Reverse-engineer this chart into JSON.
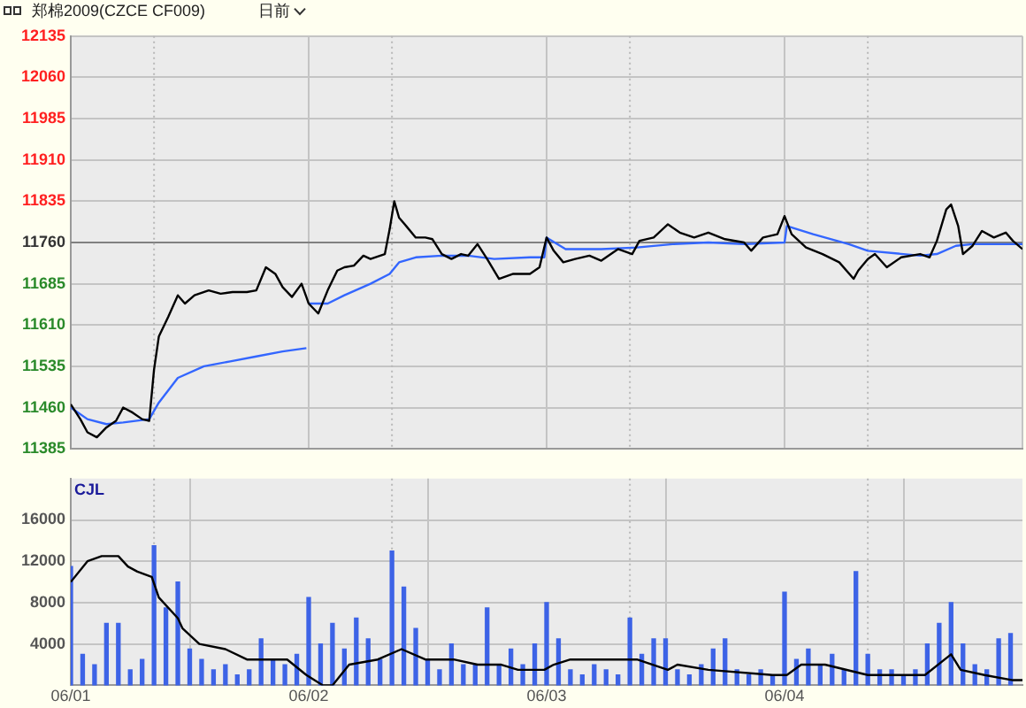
{
  "chart_data": [
    {
      "type": "line",
      "title": "郑棉2009(CZCE CF009)",
      "subtitle": "日前",
      "xlim": [
        "--06-01",
        "--06-05"
      ],
      "xticks": [
        {
          "value": "--06-01",
          "label": null
        },
        {
          "value": "--06-02",
          "label": null
        },
        {
          "value": "--06-03",
          "label": null
        },
        {
          "value": "--06-04",
          "label": null
        },
        {
          "value": "--06-05",
          "label": null
        }
      ],
      "ylim": [
        11385,
        12135
      ],
      "yticks": [
        11385,
        11460,
        11535,
        11610,
        11685,
        11760,
        11835,
        11910,
        11985,
        12060,
        12135
      ],
      "grid": true,
      "tick_labels": "y",
      "ref_lines": [
        {
          "axis": "y",
          "value": 11760,
          "color": "#808080",
          "line_style": "solid"
        },
        {
          "axis": "x",
          "value": "--06-01T08:24",
          "color": "#b8b8b8",
          "line_style": "dotted"
        },
        {
          "axis": "x",
          "value": "--06-02T08:24",
          "color": "#b8b8b8",
          "line_style": "dotted"
        },
        {
          "axis": "x",
          "value": "--06-03T08:24",
          "color": "#b8b8b8",
          "line_style": "dotted"
        },
        {
          "axis": "x",
          "value": "--06-04T08:24",
          "color": "#b8b8b8",
          "line_style": "dotted"
        }
      ],
      "series": [
        {
          "type": "line",
          "color": "#000000",
          "x": [
            "--06-01T00:00",
            "--06-01T00:58",
            "--06-01T01:41",
            "--06-01T02:38",
            "--06-01T03:36",
            "--06-01T04:34",
            "--06-01T05:17",
            "--06-01T06:14",
            "--06-01T07:12",
            "--06-01T07:55",
            "--06-01T08:24",
            "--06-01T08:53",
            "--06-01T09:50",
            "--06-01T10:48",
            "--06-01T11:31",
            "--06-01T12:29",
            "--06-01T13:55",
            "--06-01T15:07",
            "--06-01T16:19",
            "--06-01T17:46",
            "--06-01T18:43",
            "--06-01T19:41",
            "--06-01T20:38",
            "--06-01T21:22",
            "--06-01T22:19",
            "--06-01T23:17",
            "--06-01T23:46",
            "--06-02T00:00",
            "--06-02T00:58",
            "--06-02T01:55",
            "--06-02T02:53",
            "--06-02T03:36",
            "--06-02T04:34",
            "--06-02T05:31",
            "--06-02T06:14",
            "--06-02T07:41",
            "--06-02T08:10",
            "--06-02T08:38",
            "--06-02T09:07",
            "--06-02T09:50",
            "--06-02T10:48",
            "--06-02T11:46",
            "--06-02T12:29",
            "--06-02T13:26",
            "--06-02T14:24",
            "--06-02T15:22",
            "--06-02T16:05",
            "--06-02T17:02",
            "--06-02T18:00",
            "--06-02T19:12",
            "--06-02T20:38",
            "--06-02T22:19",
            "--06-02T23:17",
            "--06-03T00:00",
            "--06-03T00:43",
            "--06-03T01:41",
            "--06-03T02:53",
            "--06-03T04:19",
            "--06-03T05:31",
            "--06-03T07:12",
            "--06-03T08:38",
            "--06-03T09:22",
            "--06-03T10:48",
            "--06-03T12:14",
            "--06-03T13:26",
            "--06-03T14:53",
            "--06-03T16:19",
            "--06-03T18:00",
            "--06-03T19:55",
            "--06-03T20:38",
            "--06-03T21:50",
            "--06-03T23:17",
            "--06-04T00:00",
            "--06-04T00:43",
            "--06-04T02:10",
            "--06-04T03:50",
            "--06-04T05:31",
            "--06-04T06:58",
            "--06-04T07:26",
            "--06-04T08:24",
            "--06-04T09:07",
            "--06-04T10:19",
            "--06-04T11:46",
            "--06-04T13:41",
            "--06-04T14:38",
            "--06-04T15:22",
            "--06-04T16:19",
            "--06-04T16:48",
            "--06-04T17:31",
            "--06-04T18:00",
            "--06-04T18:58",
            "--06-04T19:55",
            "--06-04T21:07",
            "--06-04T22:19",
            "--06-04T23:02",
            "--06-05T00:00"
          ],
          "values": [
            11466,
            11439,
            11415,
            11406,
            11424,
            11436,
            11460,
            11451,
            11439,
            11436,
            11529,
            11589,
            11625,
            11664,
            11649,
            11664,
            11673,
            11667,
            11670,
            11670,
            11673,
            11715,
            11703,
            11679,
            11661,
            11685,
            11661,
            11649,
            11631,
            11673,
            11709,
            11715,
            11718,
            11736,
            11730,
            11739,
            11784,
            11835,
            11805,
            11790,
            11769,
            11769,
            11766,
            11739,
            11730,
            11739,
            11736,
            11757,
            11730,
            11694,
            11703,
            11703,
            11715,
            11769,
            11745,
            11724,
            11730,
            11736,
            11727,
            11748,
            11739,
            11763,
            11769,
            11793,
            11778,
            11769,
            11778,
            11766,
            11760,
            11745,
            11769,
            11775,
            11808,
            11775,
            11751,
            11739,
            11724,
            11694,
            11709,
            11730,
            11739,
            11715,
            11733,
            11739,
            11733,
            11763,
            11820,
            11829,
            11790,
            11739,
            11754,
            11781,
            11769,
            11778,
            11763,
            11748
          ]
        },
        {
          "type": "line",
          "color": "#3366ff",
          "x": [
            "--06-01T00:00",
            "--06-01T01:41",
            "--06-01T03:36",
            "--06-01T05:17",
            "--06-01T07:55",
            "--06-01T08:53",
            "--06-01T10:48",
            "--06-01T13:26",
            "--06-01T16:05",
            "--06-01T18:43",
            "--06-01T21:22",
            "--06-01T23:46",
            "--06-01T23:53",
            "--06-02T00:00",
            "--06-02T01:55",
            "--06-02T03:36",
            "--06-02T06:14",
            "--06-02T08:10",
            "--06-02T09:07",
            "--06-02T10:48",
            "--06-02T13:26",
            "--06-02T16:05",
            "--06-02T18:43",
            "--06-02T22:19",
            "--06-02T23:46",
            "--06-03T00:00",
            "--06-03T01:55",
            "--06-03T05:31",
            "--06-03T09:07",
            "--06-03T12:43",
            "--06-03T16:19",
            "--06-03T19:55",
            "--06-04T00:00",
            "--06-04T00:14",
            "--06-04T02:53",
            "--06-04T06:29",
            "--06-04T08:24",
            "--06-04T13:41",
            "--06-04T15:22",
            "--06-04T17:17",
            "--06-04T18:58",
            "--06-05T00:00"
          ],
          "values": [
            11460,
            11439,
            11430,
            11433,
            11439,
            11469,
            11514,
            11535,
            11544,
            11553,
            11562,
            11568,
            null,
            11649,
            11649,
            11664,
            11685,
            11703,
            11724,
            11733,
            11736,
            11736,
            11730,
            11733,
            11733,
            11769,
            11748,
            11748,
            11751,
            11757,
            11760,
            11757,
            11760,
            11790,
            11775,
            11757,
            11745,
            11736,
            11739,
            11754,
            11757,
            11757
          ]
        }
      ]
    },
    {
      "type": "bar",
      "title": "CJL",
      "xlim": [
        "--06-01",
        "--06-05"
      ],
      "xticks": [
        {
          "value": "--06-01",
          "label": "06/01"
        },
        {
          "value": "--06-02",
          "label": "06/02"
        },
        {
          "value": "--06-03",
          "label": "06/03"
        },
        {
          "value": "--06-04",
          "label": "06/04"
        },
        {
          "value": "--06-05",
          "label": null
        }
      ],
      "ylim": [
        0,
        20000
      ],
      "yticks": [
        4000,
        8000,
        12000,
        16000
      ],
      "grid": true,
      "ref_lines": [
        {
          "axis": "x",
          "value": "--06-01T08:24",
          "color": "#b8b8b8",
          "line_style": "dotted"
        },
        {
          "axis": "x",
          "value": "--06-02T08:24",
          "color": "#b8b8b8",
          "line_style": "dotted"
        },
        {
          "axis": "x",
          "value": "--06-03T08:24",
          "color": "#b8b8b8",
          "line_style": "dotted"
        },
        {
          "axis": "x",
          "value": "--06-04T08:24",
          "color": "#b8b8b8",
          "line_style": "dotted"
        }
      ],
      "series": [
        {
          "type": "bar",
          "color": "#3d63e6",
          "x": [
            "--06-01T00:00",
            "--06-01T01:12",
            "--06-01T02:24",
            "--06-01T03:36",
            "--06-01T04:48",
            "--06-01T06:00",
            "--06-01T07:12",
            "--06-01T08:24",
            "--06-01T09:36",
            "--06-01T10:48",
            "--06-01T12:00",
            "--06-01T13:12",
            "--06-01T14:24",
            "--06-01T15:36",
            "--06-01T16:48",
            "--06-01T18:00",
            "--06-01T19:12",
            "--06-01T20:24",
            "--06-01T21:36",
            "--06-01T22:48",
            "--06-02T00:00",
            "--06-02T01:12",
            "--06-02T02:24",
            "--06-02T03:36",
            "--06-02T04:48",
            "--06-02T06:00",
            "--06-02T07:12",
            "--06-02T08:24",
            "--06-02T09:36",
            "--06-02T10:48",
            "--06-02T12:00",
            "--06-02T13:12",
            "--06-02T14:24",
            "--06-02T15:36",
            "--06-02T16:48",
            "--06-02T18:00",
            "--06-02T19:12",
            "--06-02T20:24",
            "--06-02T21:36",
            "--06-02T22:48",
            "--06-03T00:00",
            "--06-03T01:12",
            "--06-03T02:24",
            "--06-03T03:36",
            "--06-03T04:48",
            "--06-03T06:00",
            "--06-03T07:12",
            "--06-03T08:24",
            "--06-03T09:36",
            "--06-03T10:48",
            "--06-03T12:00",
            "--06-03T13:12",
            "--06-03T14:24",
            "--06-03T15:36",
            "--06-03T16:48",
            "--06-03T18:00",
            "--06-03T19:12",
            "--06-03T20:24",
            "--06-03T21:36",
            "--06-03T22:48",
            "--06-04T00:00",
            "--06-04T01:12",
            "--06-04T02:24",
            "--06-04T03:36",
            "--06-04T04:48",
            "--06-04T06:00",
            "--06-04T07:12",
            "--06-04T08:24",
            "--06-04T09:36",
            "--06-04T10:48",
            "--06-04T12:00",
            "--06-04T13:12",
            "--06-04T14:24",
            "--06-04T15:36",
            "--06-04T16:48",
            "--06-04T18:00",
            "--06-04T19:12",
            "--06-04T20:24",
            "--06-04T21:36",
            "--06-04T22:48"
          ],
          "values": [
            11500,
            3000,
            2000,
            6000,
            6000,
            1500,
            2500,
            13500,
            7500,
            10000,
            3500,
            2500,
            1500,
            2000,
            1000,
            1500,
            4500,
            2500,
            2000,
            3000,
            8500,
            4000,
            6000,
            3500,
            6500,
            4500,
            2500,
            13000,
            9500,
            5500,
            2500,
            1500,
            4000,
            2000,
            2000,
            7500,
            2000,
            3500,
            2000,
            4000,
            8000,
            4500,
            1500,
            1000,
            2000,
            1500,
            1000,
            6500,
            3000,
            4500,
            4500,
            1500,
            1000,
            2000,
            3500,
            4500,
            1500,
            1000,
            1500,
            1000,
            9000,
            2500,
            3500,
            2000,
            3000,
            1500,
            11000,
            3000,
            1500,
            1500,
            1000,
            1500,
            4000,
            6000,
            8000,
            4000,
            2000,
            1500,
            4500,
            5000
          ]
        },
        {
          "type": "line",
          "color": "#000000",
          "x": [
            "--06-01T00:00",
            "--06-01T01:41",
            "--06-01T03:07",
            "--06-01T04:48",
            "--06-01T05:46",
            "--06-01T06:43",
            "--06-01T08:10",
            "--06-01T08:53",
            "--06-01T10:48",
            "--06-01T11:17",
            "--06-01T12:58",
            "--06-01T15:36",
            "--06-01T17:46",
            "--06-01T20:10",
            "--06-01T21:50",
            "--06-01T23:46",
            "--06-02T01:26",
            "--06-02T02:24",
            "--06-02T04:05",
            "--06-02T06:58",
            "--06-02T09:22",
            "--06-02T11:46",
            "--06-02T14:38",
            "--06-02T17:02",
            "--06-02T19:26",
            "--06-02T21:07",
            "--06-02T23:46",
            "--06-03T00:43",
            "--06-03T02:24",
            "--06-03T07:12",
            "--06-03T09:07",
            "--06-03T12:14",
            "--06-03T13:12",
            "--06-03T16:19",
            "--06-03T22:48",
            "--06-04T00:14",
            "--06-04T01:41",
            "--06-04T04:05",
            "--06-04T08:24",
            "--06-04T14:10",
            "--06-04T16:48",
            "--06-04T17:46",
            "--06-04T20:10",
            "--06-04T23:02",
            "--06-05T00:00"
          ],
          "values": [
            10000,
            12000,
            12500,
            12500,
            11500,
            11000,
            10500,
            8500,
            6500,
            5500,
            4000,
            3500,
            2500,
            2500,
            2500,
            1000,
            0,
            0,
            2000,
            2500,
            3500,
            2500,
            2500,
            2000,
            2000,
            1500,
            1500,
            2000,
            2500,
            2500,
            2500,
            1500,
            2000,
            1500,
            1000,
            1000,
            2000,
            2000,
            1000,
            1000,
            3000,
            1500,
            1000,
            500,
            500
          ]
        }
      ]
    }
  ]
}
